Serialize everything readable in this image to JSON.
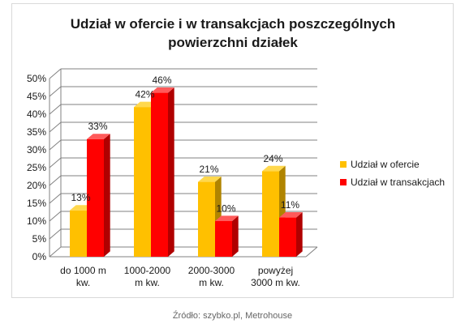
{
  "chart_data": {
    "type": "bar",
    "title_lines": [
      "Udział w ofercie i w transakcjach poszczególnych",
      "powierzchni działek"
    ],
    "categories": [
      [
        "do 1000 m",
        "kw."
      ],
      [
        "1000-2000",
        "m kw."
      ],
      [
        "2000-3000",
        "m kw."
      ],
      [
        "powyżej",
        "3000 m kw."
      ]
    ],
    "series": [
      {
        "name": "Udział w ofercie",
        "values": [
          13,
          42,
          21,
          24
        ],
        "labels": [
          "13%",
          "42%",
          "21%",
          "24%"
        ]
      },
      {
        "name": "Udział w transakcjach",
        "values": [
          33,
          46,
          10,
          11
        ],
        "labels": [
          "33%",
          "46%",
          "10%",
          "11%"
        ]
      }
    ],
    "ylim": [
      0,
      50
    ],
    "yticks": [
      "0%",
      "5%",
      "10%",
      "15%",
      "20%",
      "25%",
      "30%",
      "35%",
      "40%",
      "45%",
      "50%"
    ],
    "grid": true,
    "legend": "right",
    "colors": {
      "series_0_front": "#ffc000",
      "series_0_side": "#b08400",
      "series_0_top": "#ffd84d",
      "series_1_front": "#ff0000",
      "series_1_side": "#b00000",
      "series_1_top": "#ff5a5a",
      "grid": "#808080"
    }
  },
  "caption": "Źródło: szybko.pl, Metrohouse"
}
